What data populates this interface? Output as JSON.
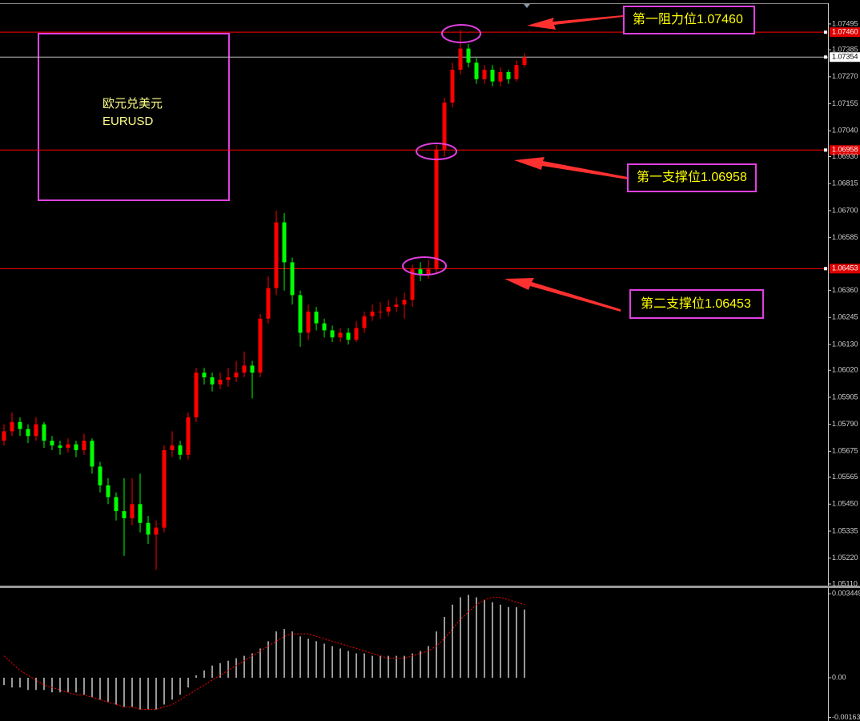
{
  "chart_data": [
    {
      "type": "candlestick",
      "title": "欧元兑美元",
      "subtitle": "EURUSD",
      "up_color": "#ff0000",
      "down_color": "#00ff00",
      "open": [
        1.0572,
        1.0576,
        1.058,
        1.0577,
        1.0574,
        1.0579,
        1.0572,
        1.057,
        1.0569,
        1.05705,
        1.0568,
        1.0572,
        1.0561,
        1.0553,
        1.0548,
        1.0542,
        1.0539,
        1.0545,
        1.0537,
        1.0532,
        1.0535,
        1.0568,
        1.057,
        1.0566,
        1.0582,
        1.0601,
        1.0599,
        1.0596,
        1.0598,
        1.0599,
        1.0601,
        1.0604,
        1.0601,
        1.0624,
        1.0637,
        1.0665,
        1.0648,
        1.0634,
        1.0618,
        1.0627,
        1.0622,
        1.0619,
        1.0616,
        1.0618,
        1.0615,
        1.062,
        1.0625,
        1.0627,
        1.0627,
        1.0629,
        1.063,
        1.0632,
        1.0645,
        1.0643,
        1.0645,
        1.0696,
        1.0716,
        1.073,
        1.0739,
        1.0733,
        1.0726,
        1.073,
        1.0725,
        1.0729,
        1.0726,
        1.0732
      ],
      "high": [
        1.0579,
        1.0584,
        1.0582,
        1.0579,
        1.0582,
        1.058,
        1.0574,
        1.0572,
        1.0573,
        1.0572,
        1.0575,
        1.0573,
        1.0563,
        1.0556,
        1.055,
        1.0556,
        1.0556,
        1.0558,
        1.054,
        1.0538,
        1.057,
        1.0576,
        1.0572,
        1.0584,
        1.0603,
        1.0603,
        1.0601,
        1.0601,
        1.0603,
        1.0606,
        1.061,
        1.0606,
        1.0626,
        1.0642,
        1.067,
        1.0669,
        1.065,
        1.0636,
        1.063,
        1.0629,
        1.0624,
        1.0621,
        1.062,
        1.062,
        1.0623,
        1.0627,
        1.063,
        1.0631,
        1.0632,
        1.0633,
        1.0635,
        1.0647,
        1.0648,
        1.0649,
        1.0698,
        1.0718,
        1.0733,
        1.0747,
        1.0741,
        1.0735,
        1.0732,
        1.0732,
        1.0731,
        1.073,
        1.0734,
        1.0737
      ],
      "low": [
        1.057,
        1.0574,
        1.0574,
        1.0571,
        1.0572,
        1.0569,
        1.0568,
        1.0566,
        1.0567,
        1.0565,
        1.0566,
        1.0558,
        1.055,
        1.0545,
        1.0538,
        1.0523,
        1.0536,
        1.0533,
        1.0528,
        1.0517,
        1.0533,
        1.0565,
        1.0564,
        1.0564,
        1.058,
        1.0596,
        1.0593,
        1.0594,
        1.0595,
        1.0597,
        1.0599,
        1.059,
        1.0599,
        1.0622,
        1.0634,
        1.0636,
        1.063,
        1.0612,
        1.0615,
        1.0619,
        1.0616,
        1.0614,
        1.0614,
        1.0613,
        1.0614,
        1.0618,
        1.0623,
        1.0624,
        1.0625,
        1.0627,
        1.0624,
        1.0629,
        1.064,
        1.0641,
        1.0643,
        1.0693,
        1.0714,
        1.0728,
        1.0731,
        1.0724,
        1.0724,
        1.0723,
        1.0723,
        1.0724,
        1.0725,
        1.0731
      ],
      "close": [
        1.0576,
        1.058,
        1.0577,
        1.0574,
        1.0579,
        1.0572,
        1.057,
        1.0569,
        1.05705,
        1.0568,
        1.0572,
        1.0561,
        1.0553,
        1.0548,
        1.0542,
        1.0539,
        1.0545,
        1.0537,
        1.0532,
        1.0535,
        1.0568,
        1.057,
        1.0566,
        1.0582,
        1.0601,
        1.0599,
        1.0596,
        1.0598,
        1.0599,
        1.0601,
        1.0604,
        1.0601,
        1.0624,
        1.0637,
        1.0665,
        1.0648,
        1.0634,
        1.0618,
        1.0627,
        1.0622,
        1.0619,
        1.0616,
        1.0618,
        1.0615,
        1.062,
        1.0625,
        1.0627,
        1.0627,
        1.0629,
        1.063,
        1.0632,
        1.0645,
        1.0643,
        1.0645,
        1.0696,
        1.0716,
        1.073,
        1.0739,
        1.0733,
        1.0726,
        1.073,
        1.0725,
        1.0729,
        1.0726,
        1.0732,
        1.07354
      ],
      "ylim": [
        1.05103,
        1.0758
      ],
      "yticks": [
        1.07495,
        1.07385,
        {
          "value": 1.0727,
          "label": "1.07270"
        },
        1.07155,
        {
          "value": 1.0704,
          "label": "1.07040"
        },
        {
          "value": 1.0693,
          "label": "1.06930"
        },
        1.06815,
        {
          "value": 1.067,
          "label": "1.06700"
        },
        1.06585,
        {
          "value": 1.0636,
          "label": "1.06360"
        },
        1.06245,
        {
          "value": 1.0613,
          "label": "1.06130"
        },
        {
          "value": 1.0602,
          "label": "1.06020"
        },
        1.05905,
        {
          "value": 1.0579,
          "label": "1.05790"
        },
        1.05675,
        1.05565,
        {
          "value": 1.0545,
          "label": "1.05450"
        },
        1.05335,
        {
          "value": 1.0522,
          "label": "1.05220"
        },
        {
          "value": 1.0511,
          "label": "1.05110"
        }
      ],
      "levels": [
        {
          "value": 1.0746,
          "label": "1.07460",
          "color": "#ff0000"
        },
        {
          "value": 1.07354,
          "label": "1.07354",
          "color": "#c0c0c0"
        },
        {
          "value": 1.06958,
          "label": "1.06958",
          "color": "#ff0000"
        },
        {
          "value": 1.06453,
          "label": "1.06453",
          "color": "#ff0000"
        }
      ],
      "annotations": [
        "第一阻力位1.07460",
        "第一支撑位1.06958",
        "第二支撑位1.06453"
      ]
    },
    {
      "type": "macd",
      "histogram": [
        -0.0003,
        -0.0004,
        -0.0004,
        -0.0005,
        -0.0005,
        -0.0005,
        -0.0006,
        -0.0006,
        -0.0006,
        -0.0006,
        -0.0007,
        -0.0008,
        -0.0009,
        -0.001,
        -0.0011,
        -0.0012,
        -0.0012,
        -0.0013,
        -0.0013,
        -0.0013,
        -0.0011,
        -0.0009,
        -0.0007,
        -0.0004,
        0.0001,
        0.0003,
        0.0005,
        0.0006,
        0.0007,
        0.0008,
        0.0009,
        0.001,
        0.0012,
        0.0015,
        0.0019,
        0.002,
        0.0019,
        0.0017,
        0.0016,
        0.0015,
        0.0014,
        0.0013,
        0.0012,
        0.0011,
        0.001,
        0.001,
        0.0009,
        0.0009,
        0.0009,
        0.0009,
        0.0009,
        0.001,
        0.0011,
        0.0013,
        0.0019,
        0.0025,
        0.003,
        0.0033,
        0.0034,
        0.0033,
        0.0032,
        0.0031,
        0.003,
        0.0029,
        0.0029,
        0.0028
      ],
      "signal": [
        0.0009,
        0.0006,
        0.0003,
        0.0001,
        -0.0001,
        -0.0003,
        -0.0004,
        -0.0005,
        -0.0006,
        -0.0007,
        -0.0007,
        -0.0008,
        -0.0009,
        -0.001,
        -0.0011,
        -0.0012,
        -0.0012,
        -0.0013,
        -0.0013,
        -0.0013,
        -0.0012,
        -0.0011,
        -0.0009,
        -0.0007,
        -0.0005,
        -0.0003,
        -0.0001,
        0.0001,
        0.0003,
        0.0005,
        0.0007,
        0.0009,
        0.0011,
        0.0013,
        0.0015,
        0.0017,
        0.0018,
        0.0018,
        0.0018,
        0.0017,
        0.0016,
        0.0015,
        0.0014,
        0.0013,
        0.0012,
        0.0011,
        0.001,
        0.0009,
        0.0008,
        0.0008,
        0.0008,
        0.0009,
        0.001,
        0.0011,
        0.0013,
        0.0016,
        0.002,
        0.0024,
        0.0027,
        0.003,
        0.0032,
        0.0033,
        0.0033,
        0.0032,
        0.0031,
        0.003
      ],
      "histogram_color": "#ffffff",
      "signal_color": "#ff0000",
      "ylim": [
        -0.00171,
        0.00365
      ],
      "yticks": [
        0.003449,
        {
          "value": 0,
          "label": "0.00"
        },
        -0.00163
      ]
    }
  ]
}
